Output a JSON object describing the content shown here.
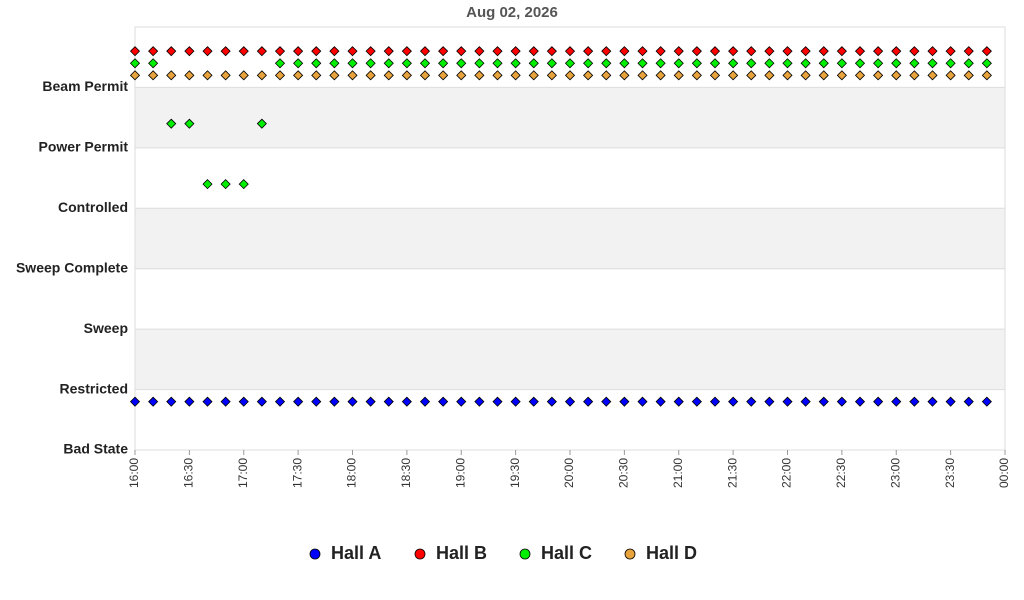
{
  "chart_data": {
    "type": "scatter",
    "title": "Aug 02, 2026",
    "y_categories": [
      "Beam Permit",
      "Power Permit",
      "Controlled",
      "Sweep Complete",
      "Sweep",
      "Restricted",
      "Bad State"
    ],
    "x": [
      "16:00",
      "16:10",
      "16:20",
      "16:30",
      "16:40",
      "16:50",
      "17:00",
      "17:10",
      "17:20",
      "17:30",
      "17:40",
      "17:50",
      "18:00",
      "18:10",
      "18:20",
      "18:30",
      "18:40",
      "18:50",
      "19:00",
      "19:10",
      "19:20",
      "19:30",
      "19:40",
      "19:50",
      "20:00",
      "20:10",
      "20:20",
      "20:30",
      "20:40",
      "20:50",
      "21:00",
      "21:10",
      "21:20",
      "21:30",
      "21:40",
      "21:50",
      "22:00",
      "22:10",
      "22:20",
      "22:30",
      "22:40",
      "22:50",
      "23:00",
      "23:10",
      "23:20",
      "23:30",
      "23:40",
      "23:50"
    ],
    "xlim": [
      "16:00",
      "00:00"
    ],
    "xticks": [
      "16:00",
      "16:30",
      "17:00",
      "17:30",
      "18:00",
      "18:30",
      "19:00",
      "19:30",
      "20:00",
      "20:30",
      "21:00",
      "21:30",
      "22:00",
      "22:30",
      "23:00",
      "23:30",
      "00:00"
    ],
    "grid": true,
    "legend": "bottom",
    "series": [
      {
        "name": "Hall A",
        "color": "#0000ff",
        "values": [
          "Bad State",
          "Bad State",
          "Bad State",
          "Bad State",
          "Bad State",
          "Bad State",
          "Bad State",
          "Bad State",
          "Bad State",
          "Bad State",
          "Bad State",
          "Bad State",
          "Bad State",
          "Bad State",
          "Bad State",
          "Bad State",
          "Bad State",
          "Bad State",
          "Bad State",
          "Bad State",
          "Bad State",
          "Bad State",
          "Bad State",
          "Bad State",
          "Bad State",
          "Bad State",
          "Bad State",
          "Bad State",
          "Bad State",
          "Bad State",
          "Bad State",
          "Bad State",
          "Bad State",
          "Bad State",
          "Bad State",
          "Bad State",
          "Bad State",
          "Bad State",
          "Bad State",
          "Bad State",
          "Bad State",
          "Bad State",
          "Bad State",
          "Bad State",
          "Bad State",
          "Bad State",
          "Bad State",
          "Bad State"
        ]
      },
      {
        "name": "Hall B",
        "color": "#ff0000",
        "values": [
          "Beam Permit",
          "Beam Permit",
          "Beam Permit",
          "Beam Permit",
          "Beam Permit",
          "Beam Permit",
          "Beam Permit",
          "Beam Permit",
          "Beam Permit",
          "Beam Permit",
          "Beam Permit",
          "Beam Permit",
          "Beam Permit",
          "Beam Permit",
          "Beam Permit",
          "Beam Permit",
          "Beam Permit",
          "Beam Permit",
          "Beam Permit",
          "Beam Permit",
          "Beam Permit",
          "Beam Permit",
          "Beam Permit",
          "Beam Permit",
          "Beam Permit",
          "Beam Permit",
          "Beam Permit",
          "Beam Permit",
          "Beam Permit",
          "Beam Permit",
          "Beam Permit",
          "Beam Permit",
          "Beam Permit",
          "Beam Permit",
          "Beam Permit",
          "Beam Permit",
          "Beam Permit",
          "Beam Permit",
          "Beam Permit",
          "Beam Permit",
          "Beam Permit",
          "Beam Permit",
          "Beam Permit",
          "Beam Permit",
          "Beam Permit",
          "Beam Permit",
          "Beam Permit",
          "Beam Permit"
        ]
      },
      {
        "name": "Hall C",
        "color": "#00ee00",
        "values": [
          "Beam Permit",
          "Beam Permit",
          "Power Permit",
          "Power Permit",
          "Controlled",
          "Controlled",
          "Controlled",
          "Power Permit",
          "Beam Permit",
          "Beam Permit",
          "Beam Permit",
          "Beam Permit",
          "Beam Permit",
          "Beam Permit",
          "Beam Permit",
          "Beam Permit",
          "Beam Permit",
          "Beam Permit",
          "Beam Permit",
          "Beam Permit",
          "Beam Permit",
          "Beam Permit",
          "Beam Permit",
          "Beam Permit",
          "Beam Permit",
          "Beam Permit",
          "Beam Permit",
          "Beam Permit",
          "Beam Permit",
          "Beam Permit",
          "Beam Permit",
          "Beam Permit",
          "Beam Permit",
          "Beam Permit",
          "Beam Permit",
          "Beam Permit",
          "Beam Permit",
          "Beam Permit",
          "Beam Permit",
          "Beam Permit",
          "Beam Permit",
          "Beam Permit",
          "Beam Permit",
          "Beam Permit",
          "Beam Permit",
          "Beam Permit",
          "Beam Permit",
          "Beam Permit"
        ]
      },
      {
        "name": "Hall D",
        "color": "#e8a33c",
        "values": [
          "Beam Permit",
          "Beam Permit",
          "Beam Permit",
          "Beam Permit",
          "Beam Permit",
          "Beam Permit",
          "Beam Permit",
          "Beam Permit",
          "Beam Permit",
          "Beam Permit",
          "Beam Permit",
          "Beam Permit",
          "Beam Permit",
          "Beam Permit",
          "Beam Permit",
          "Beam Permit",
          "Beam Permit",
          "Beam Permit",
          "Beam Permit",
          "Beam Permit",
          "Beam Permit",
          "Beam Permit",
          "Beam Permit",
          "Beam Permit",
          "Beam Permit",
          "Beam Permit",
          "Beam Permit",
          "Beam Permit",
          "Beam Permit",
          "Beam Permit",
          "Beam Permit",
          "Beam Permit",
          "Beam Permit",
          "Beam Permit",
          "Beam Permit",
          "Beam Permit",
          "Beam Permit",
          "Beam Permit",
          "Beam Permit",
          "Beam Permit",
          "Beam Permit",
          "Beam Permit",
          "Beam Permit",
          "Beam Permit",
          "Beam Permit",
          "Beam Permit",
          "Beam Permit",
          "Beam Permit"
        ]
      }
    ]
  }
}
